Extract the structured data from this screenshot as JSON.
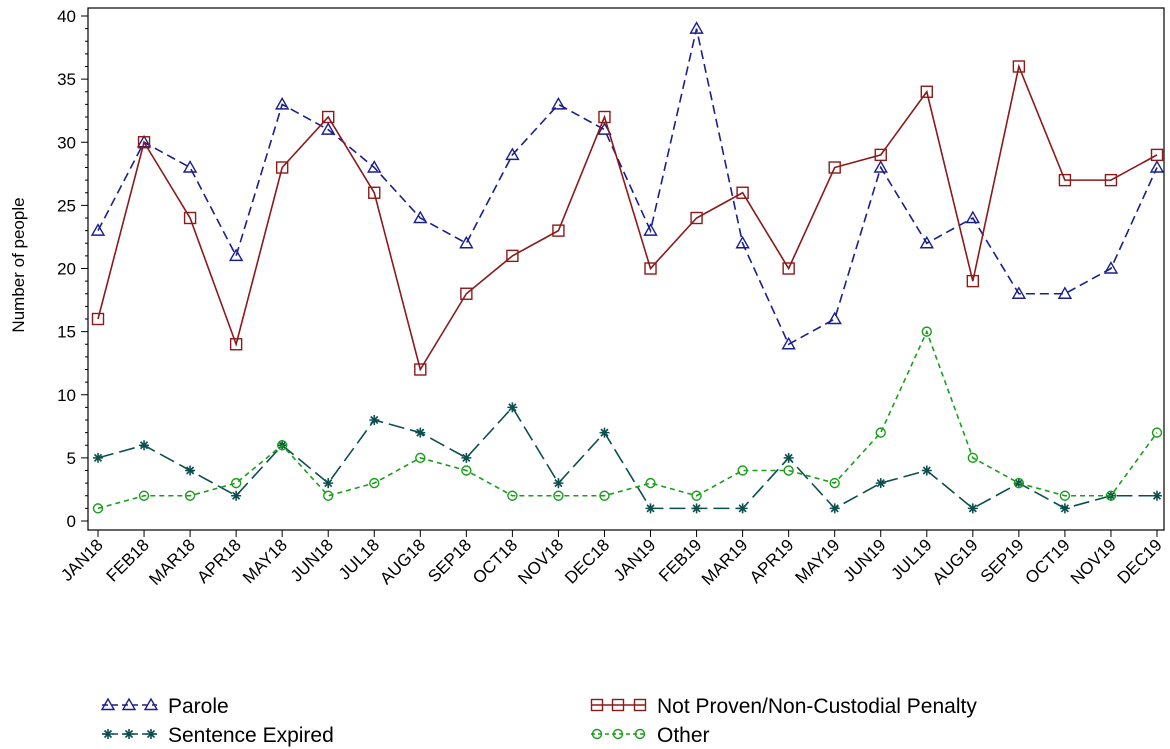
{
  "chart_data": {
    "type": "line",
    "title": "",
    "xlabel": "",
    "ylabel": "Number of people",
    "ylim": [
      0,
      40
    ],
    "yticks": [
      0,
      5,
      10,
      15,
      20,
      25,
      30,
      35,
      40
    ],
    "grid": false,
    "legend_position": "bottom",
    "categories": [
      "JAN18",
      "FEB18",
      "MAR18",
      "APR18",
      "MAY18",
      "JUN18",
      "JUL18",
      "AUG18",
      "SEP18",
      "OCT18",
      "NOV18",
      "DEC18",
      "JAN19",
      "FEB19",
      "MAR19",
      "APR19",
      "MAY19",
      "JUN19",
      "JUL19",
      "AUG19",
      "SEP19",
      "OCT19",
      "NOV19",
      "DEC19"
    ],
    "series": [
      {
        "name": "Parole",
        "color": "#1a1f8c",
        "marker": "triangle",
        "dash": "dashed",
        "values": [
          23,
          30,
          28,
          21,
          33,
          31,
          28,
          24,
          22,
          29,
          33,
          31,
          23,
          39,
          22,
          14,
          16,
          28,
          22,
          24,
          18,
          18,
          20,
          28
        ]
      },
      {
        "name": "Not Proven/Non-Custodial Penalty",
        "color": "#8b1a1a",
        "marker": "square",
        "dash": "solid",
        "values": [
          16,
          30,
          24,
          14,
          28,
          32,
          26,
          12,
          18,
          21,
          23,
          32,
          20,
          24,
          26,
          20,
          28,
          29,
          34,
          19,
          36,
          27,
          27,
          29
        ]
      },
      {
        "name": "Sentence Expired",
        "color": "#0d4f4f",
        "marker": "star",
        "dash": "longdash",
        "values": [
          5,
          6,
          4,
          2,
          6,
          3,
          8,
          7,
          5,
          9,
          3,
          7,
          1,
          1,
          1,
          5,
          1,
          3,
          4,
          1,
          3,
          1,
          2,
          2
        ]
      },
      {
        "name": "Other",
        "color": "#1a9e1a",
        "marker": "circle",
        "dash": "dotted",
        "values": [
          1,
          2,
          2,
          3,
          6,
          2,
          3,
          5,
          4,
          2,
          2,
          2,
          3,
          2,
          4,
          4,
          3,
          7,
          15,
          5,
          3,
          2,
          2,
          7
        ]
      }
    ]
  }
}
